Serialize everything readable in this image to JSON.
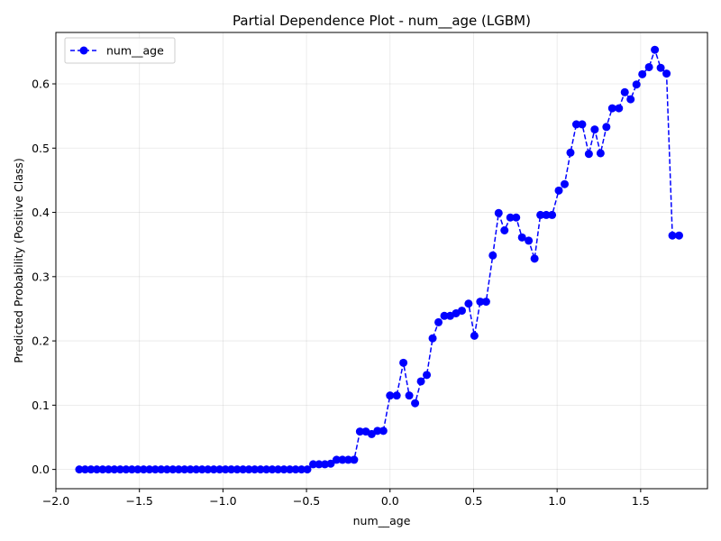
{
  "chart_data": {
    "type": "line",
    "title": "Partial Dependence Plot - num__age (LGBM)",
    "xlabel": "num__age",
    "ylabel": "Predicted Probability (Positive Class)",
    "xlim": [
      -2.0,
      1.9
    ],
    "ylim": [
      -0.03,
      0.68
    ],
    "xticks": [
      -2.0,
      -1.5,
      -1.0,
      -0.5,
      0.0,
      0.5,
      1.0,
      1.5
    ],
    "xtick_labels": [
      "−2.0",
      "−1.5",
      "−1.0",
      "−0.5",
      "0.0",
      "0.5",
      "1.0",
      "1.5"
    ],
    "yticks": [
      0.0,
      0.1,
      0.2,
      0.3,
      0.4,
      0.5,
      0.6
    ],
    "ytick_labels": [
      "0.0",
      "0.1",
      "0.2",
      "0.3",
      "0.4",
      "0.5",
      "0.6"
    ],
    "grid": true,
    "legend_position": "top-left",
    "series": [
      {
        "name": "num__age",
        "color": "#0000ff",
        "line_style": "dashed",
        "marker": "circle",
        "x": [
          -1.86,
          -1.825,
          -1.79,
          -1.755,
          -1.72,
          -1.685,
          -1.65,
          -1.615,
          -1.58,
          -1.545,
          -1.51,
          -1.475,
          -1.44,
          -1.405,
          -1.37,
          -1.335,
          -1.3,
          -1.265,
          -1.23,
          -1.195,
          -1.16,
          -1.125,
          -1.09,
          -1.055,
          -1.02,
          -0.985,
          -0.95,
          -0.915,
          -0.88,
          -0.845,
          -0.81,
          -0.775,
          -0.74,
          -0.705,
          -0.67,
          -0.635,
          -0.6,
          -0.565,
          -0.53,
          -0.495,
          -0.46,
          -0.425,
          -0.39,
          -0.355,
          -0.32,
          -0.285,
          -0.25,
          -0.215,
          -0.18,
          -0.145,
          -0.11,
          -0.075,
          -0.04,
          0.0,
          0.04,
          0.08,
          0.115,
          0.15,
          0.185,
          0.22,
          0.255,
          0.29,
          0.325,
          0.36,
          0.395,
          0.43,
          0.47,
          0.505,
          0.54,
          0.575,
          0.615,
          0.65,
          0.685,
          0.72,
          0.755,
          0.79,
          0.83,
          0.865,
          0.9,
          0.935,
          0.97,
          1.01,
          1.045,
          1.08,
          1.115,
          1.15,
          1.19,
          1.225,
          1.26,
          1.295,
          1.33,
          1.37,
          1.405,
          1.44,
          1.475,
          1.51,
          1.55,
          1.585,
          1.62,
          1.655,
          1.69,
          1.73
        ],
        "y": [
          0.0,
          0.0,
          0.0,
          0.0,
          0.0,
          0.0,
          0.0,
          0.0,
          0.0,
          0.0,
          0.0,
          0.0,
          0.0,
          0.0,
          0.0,
          0.0,
          0.0,
          0.0,
          0.0,
          0.0,
          0.0,
          0.0,
          0.0,
          0.0,
          0.0,
          0.0,
          0.0,
          0.0,
          0.0,
          0.0,
          0.0,
          0.0,
          0.0,
          0.0,
          0.0,
          0.0,
          0.0,
          0.0,
          0.0,
          0.0,
          0.008,
          0.008,
          0.008,
          0.009,
          0.015,
          0.015,
          0.015,
          0.015,
          0.059,
          0.059,
          0.055,
          0.06,
          0.06,
          0.115,
          0.115,
          0.166,
          0.115,
          0.103,
          0.137,
          0.147,
          0.204,
          0.229,
          0.239,
          0.239,
          0.243,
          0.247,
          0.258,
          0.208,
          0.261,
          0.261,
          0.333,
          0.399,
          0.372,
          0.392,
          0.392,
          0.361,
          0.356,
          0.328,
          0.396,
          0.396,
          0.396,
          0.434,
          0.444,
          0.493,
          0.537,
          0.537,
          0.491,
          0.529,
          0.492,
          0.533,
          0.562,
          0.562,
          0.587,
          0.576,
          0.599,
          0.615,
          0.626,
          0.653,
          0.625,
          0.616,
          0.364,
          0.364
        ]
      }
    ]
  }
}
